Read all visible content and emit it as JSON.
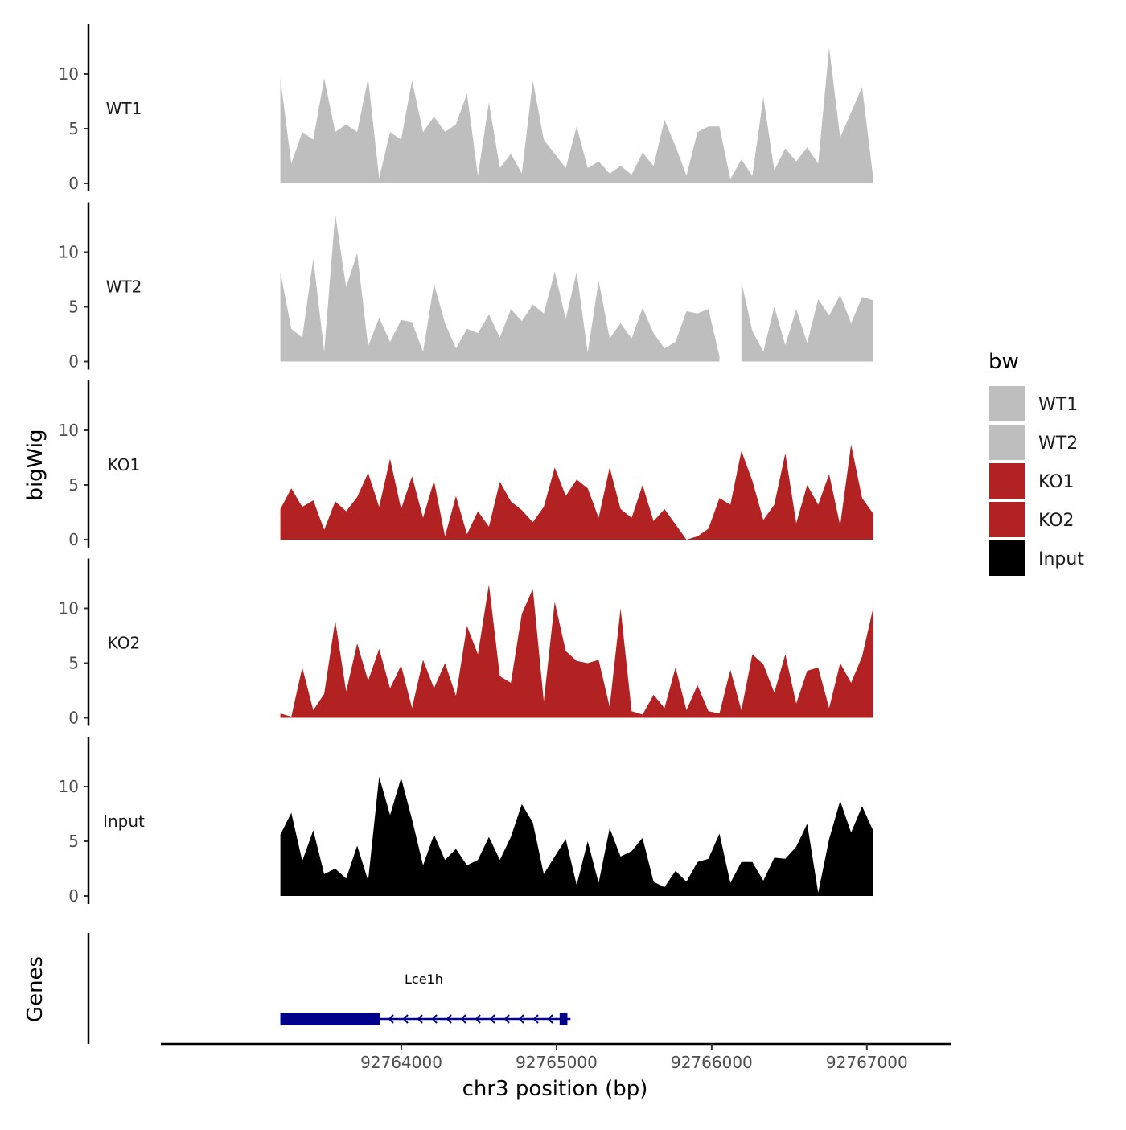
{
  "chart_data": {
    "type": "area",
    "title": "",
    "xlabel": "chr3 position (bp)",
    "ylabel": "bigWig",
    "genes_label": "Genes",
    "x_range": [
      92763220,
      92767040
    ],
    "xlim": [
      92762450,
      92767540
    ],
    "x_ticks": [
      92764000,
      92765000,
      92766000,
      92767000
    ],
    "x_tick_labels": [
      "92764000",
      "92765000",
      "92766000",
      "92767000"
    ],
    "y_ticks": [
      0,
      5,
      10
    ],
    "y_tick_labels": [
      "0",
      "5",
      "10"
    ],
    "ylim": [
      0,
      14.4
    ],
    "legend": {
      "title": "bw",
      "position": "right",
      "entries": [
        {
          "label": "WT1",
          "color": "#BEBEBE"
        },
        {
          "label": "WT2",
          "color": "#BEBEBE"
        },
        {
          "label": "KO1",
          "color": "#B22222"
        },
        {
          "label": "KO2",
          "color": "#B22222"
        },
        {
          "label": "Input",
          "color": "#000000"
        }
      ]
    },
    "series": [
      {
        "name": "WT1",
        "color": "#BEBEBE",
        "values": [
          9.6,
          1.8,
          4.7,
          4.0,
          9.6,
          4.7,
          5.4,
          4.7,
          9.6,
          0.5,
          4.7,
          4.0,
          9.4,
          4.7,
          6.1,
          4.7,
          5.4,
          8.2,
          0.7,
          7.4,
          1.4,
          2.7,
          0.9,
          9.4,
          4.0,
          2.7,
          1.4,
          5.2,
          1.4,
          2.0,
          0.9,
          1.6,
          0.8,
          2.8,
          1.6,
          5.8,
          3.4,
          0.7,
          4.7,
          5.2,
          5.2,
          0.4,
          2.2,
          0.7,
          7.9,
          1.2,
          3.2,
          2.0,
          3.3,
          1.8,
          12.4,
          4.2,
          6.5,
          8.8,
          0.6
        ]
      },
      {
        "name": "WT2",
        "color": "#BEBEBE",
        "values": [
          8.2,
          3.0,
          2.2,
          9.4,
          0.9,
          13.5,
          6.8,
          9.9,
          1.4,
          4.0,
          1.8,
          3.8,
          3.6,
          0.9,
          7.1,
          3.5,
          1.2,
          3.0,
          2.6,
          4.3,
          2.2,
          4.8,
          3.7,
          5.2,
          4.4,
          8.2,
          3.9,
          8.2,
          0.8,
          7.4,
          2.1,
          3.5,
          2.1,
          4.9,
          2.6,
          1.2,
          1.8,
          4.6,
          4.4,
          4.8,
          0.5,
          null,
          7.3,
          2.8,
          0.9,
          5.0,
          1.5,
          4.8,
          1.7,
          5.7,
          4.2,
          6.1,
          3.5,
          5.9,
          5.6
        ]
      },
      {
        "name": "KO1",
        "color": "#B22222",
        "values": [
          2.8,
          4.7,
          3.0,
          3.6,
          0.9,
          3.5,
          2.6,
          3.9,
          6.1,
          3.0,
          7.4,
          2.8,
          5.8,
          2.0,
          5.4,
          0.3,
          4.0,
          0.5,
          2.6,
          1.2,
          5.3,
          3.5,
          2.7,
          1.6,
          3.0,
          6.6,
          4.0,
          5.5,
          4.7,
          2.0,
          6.6,
          2.8,
          2.0,
          5.0,
          1.7,
          2.8,
          1.4,
          0.0,
          0.3,
          1.0,
          3.8,
          3.2,
          8.1,
          5.4,
          1.8,
          3.2,
          7.9,
          1.5,
          5.0,
          3.2,
          6.0,
          1.3,
          8.7,
          3.8,
          2.4
        ]
      },
      {
        "name": "KO2",
        "color": "#B22222",
        "values": [
          0.4,
          0.1,
          4.6,
          0.7,
          2.2,
          8.9,
          2.4,
          6.8,
          3.4,
          6.3,
          2.7,
          4.8,
          0.9,
          5.3,
          2.7,
          5.0,
          2.0,
          8.4,
          5.8,
          12.2,
          3.8,
          3.2,
          9.5,
          11.8,
          1.5,
          10.6,
          6.1,
          5.2,
          5.0,
          5.3,
          1.0,
          10.0,
          0.6,
          0.3,
          2.1,
          0.9,
          4.6,
          0.7,
          3.0,
          0.6,
          0.4,
          4.4,
          0.7,
          5.8,
          4.9,
          2.3,
          5.8,
          1.3,
          4.3,
          4.6,
          0.9,
          5.0,
          3.2,
          5.6,
          10.0
        ]
      },
      {
        "name": "Input",
        "color": "#000000",
        "values": [
          5.6,
          7.6,
          3.2,
          6.0,
          2.0,
          2.5,
          1.6,
          4.6,
          1.4,
          10.9,
          7.4,
          10.8,
          7.0,
          2.8,
          5.6,
          3.3,
          4.3,
          2.8,
          3.3,
          5.4,
          3.3,
          5.4,
          8.4,
          6.7,
          2.0,
          3.6,
          5.2,
          1.0,
          5.0,
          1.2,
          6.2,
          3.6,
          4.1,
          5.3,
          1.3,
          0.8,
          2.3,
          1.3,
          3.1,
          3.4,
          5.7,
          1.2,
          3.1,
          3.1,
          1.4,
          3.5,
          3.4,
          4.5,
          6.6,
          0.3,
          5.2,
          8.7,
          5.8,
          8.2,
          6.0
        ]
      }
    ],
    "genes": [
      {
        "name": "Lce1h",
        "strand": "-",
        "start": 92763220,
        "end": 92765090,
        "thick_ranges": [
          [
            92763220,
            92763860
          ],
          [
            92765020,
            92765070
          ]
        ],
        "color": "#00008B"
      }
    ]
  }
}
